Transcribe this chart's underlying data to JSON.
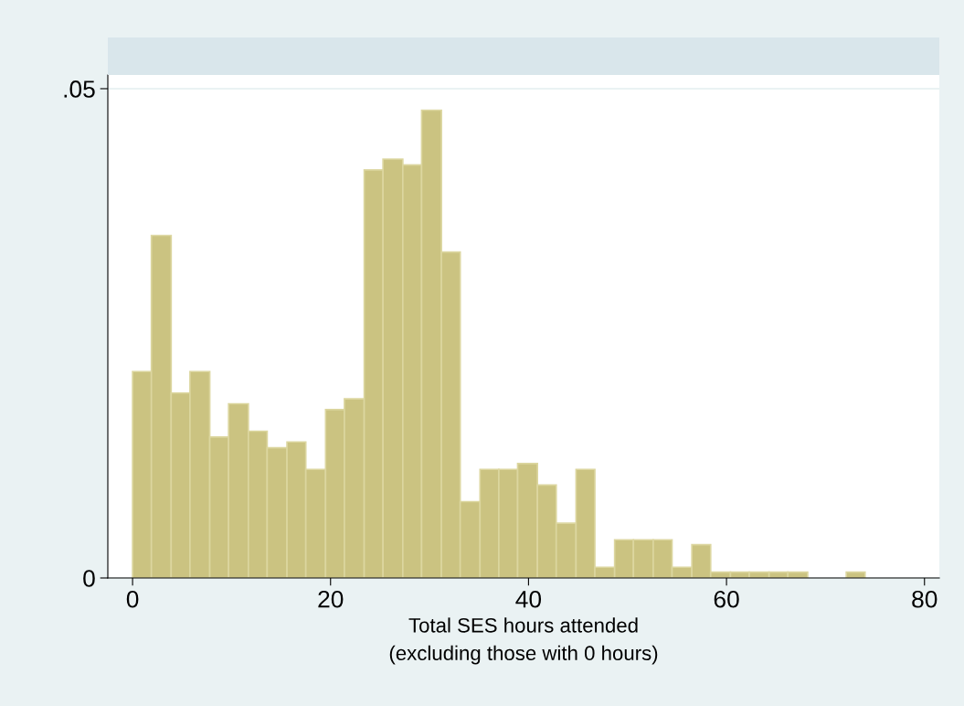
{
  "chart_data": {
    "type": "histogram",
    "xlabel": "Total SES hours attended\n(excluding those with 0 hours)",
    "bins": [
      0,
      1.9,
      3.9,
      5.8,
      7.8,
      9.7,
      11.7,
      13.6,
      15.6,
      17.5,
      19.5,
      21.4,
      23.4,
      25.3,
      27.3,
      29.2,
      31.2,
      33.1,
      35.1,
      37.0,
      38.9,
      40.9,
      42.8,
      44.8,
      46.7,
      48.7,
      50.6,
      52.6,
      54.5,
      56.5,
      58.4,
      60.4,
      62.3,
      64.3,
      66.2,
      68.2,
      72.1,
      74.0
    ],
    "values": [
      0.0211,
      0.035,
      0.0189,
      0.0211,
      0.0144,
      0.0178,
      0.015,
      0.0133,
      0.0139,
      0.0111,
      0.0172,
      0.0183,
      0.0417,
      0.0428,
      0.0422,
      0.0478,
      0.0333,
      0.0078,
      0.0111,
      0.0111,
      0.0117,
      0.0095,
      0.0056,
      0.0111,
      0.0011,
      0.0039,
      0.0039,
      0.0039,
      0.0011,
      0.0034,
      0.0006,
      0.0006,
      0.0006,
      0.0006,
      0.0006,
      0,
      0.0006
    ],
    "color": "#cbc381",
    "xlim": [
      -2.5,
      81.5
    ],
    "xticks": [
      0,
      20,
      40,
      60,
      80
    ],
    "ylim": [
      0,
      0.0514
    ],
    "yticks": [
      0,
      {
        "value": 0.05,
        "label": ".05"
      }
    ],
    "grid": "y"
  }
}
